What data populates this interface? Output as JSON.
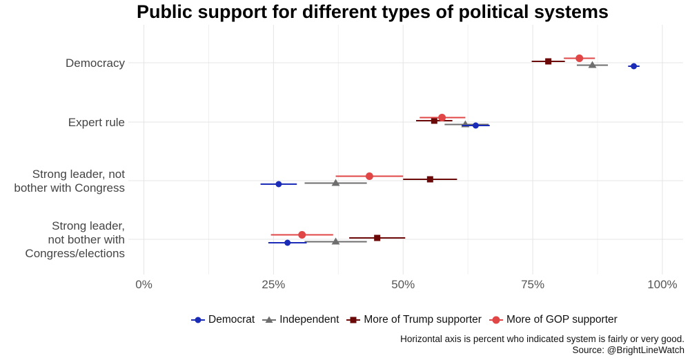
{
  "chart_data": {
    "type": "scatter",
    "title": "Public support for different types of political systems",
    "xlabel": "",
    "ylabel": "",
    "xlim": [
      -0.03,
      1.04
    ],
    "x_ticks": [
      "0%",
      "25%",
      "50%",
      "75%",
      "100%"
    ],
    "categories": [
      [
        "Democracy"
      ],
      [
        "Expert rule"
      ],
      [
        "Strong leader, not",
        "bother with Congress"
      ],
      [
        "Strong leader,",
        "not bother with",
        "Congress/elections"
      ]
    ],
    "series": [
      {
        "name": "Democrat",
        "color": "#1a2bb8",
        "shape": "circle",
        "values": [
          0.945,
          0.64,
          0.26,
          0.277
        ],
        "ci": [
          [
            0.934,
            0.956
          ],
          [
            0.613,
            0.667
          ],
          [
            0.225,
            0.295
          ],
          [
            0.24,
            0.314
          ]
        ]
      },
      {
        "name": "Independent",
        "color": "#6e6e6e",
        "shape": "triangle",
        "values": [
          0.865,
          0.62,
          0.37,
          0.37
        ],
        "ci": [
          [
            0.835,
            0.895
          ],
          [
            0.58,
            0.665
          ],
          [
            0.31,
            0.43
          ],
          [
            0.31,
            0.43
          ]
        ]
      },
      {
        "name": "More of Trump supporter",
        "color": "#6b0808",
        "shape": "square",
        "values": [
          0.78,
          0.56,
          0.552,
          0.45
        ],
        "ci": [
          [
            0.748,
            0.812
          ],
          [
            0.525,
            0.595
          ],
          [
            0.5,
            0.604
          ],
          [
            0.396,
            0.504
          ]
        ]
      },
      {
        "name": "More of GOP supporter",
        "color": "#e04646",
        "shape": "circle-large",
        "values": [
          0.84,
          0.575,
          0.435,
          0.305
        ],
        "ci": [
          [
            0.81,
            0.87
          ],
          [
            0.532,
            0.62
          ],
          [
            0.37,
            0.5
          ],
          [
            0.245,
            0.365
          ]
        ]
      }
    ],
    "grid": true,
    "legend": "bottom"
  },
  "caption": {
    "line1": "Horizontal axis is percent who indicated system is fairly or very good.",
    "line2": "Source: @BrightLineWatch"
  }
}
